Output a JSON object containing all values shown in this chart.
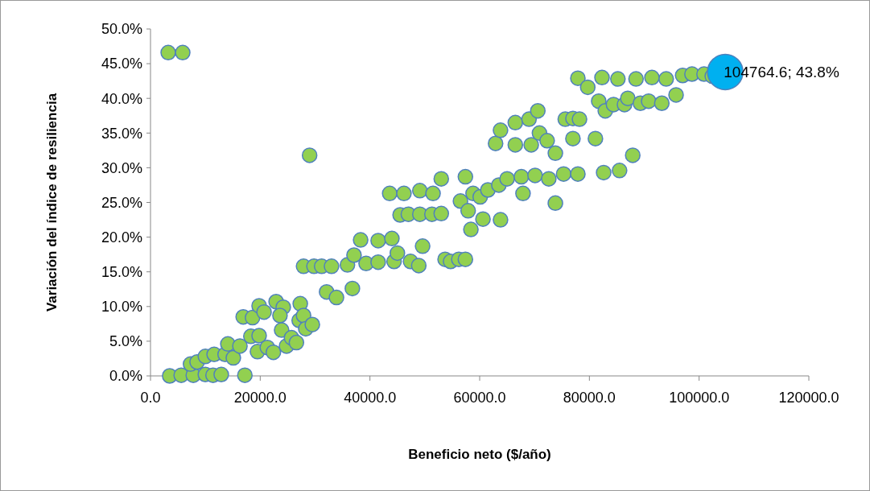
{
  "chart_data": {
    "type": "scatter",
    "xlabel": "Beneficio neto ($/año)",
    "ylabel": "Variación del índice de resiliencia",
    "xlim": [
      0,
      120000
    ],
    "xticks": [
      {
        "value": 0,
        "label": "0.0"
      },
      {
        "value": 20000,
        "label": "20000.0"
      },
      {
        "value": 40000,
        "label": "40000.0"
      },
      {
        "value": 60000,
        "label": "60000.0"
      },
      {
        "value": 80000,
        "label": "80000.0"
      },
      {
        "value": 100000,
        "label": "100000.0"
      },
      {
        "value": 120000,
        "label": "120000.0"
      }
    ],
    "ylim": [
      0,
      50
    ],
    "yticks": [
      {
        "value": 0,
        "label": "0.0%"
      },
      {
        "value": 5,
        "label": "5.0%"
      },
      {
        "value": 10,
        "label": "10.0%"
      },
      {
        "value": 15,
        "label": "15.0%"
      },
      {
        "value": 20,
        "label": "20.0%"
      },
      {
        "value": 25,
        "label": "25.0%"
      },
      {
        "value": 30,
        "label": "30.0%"
      },
      {
        "value": 35,
        "label": "35.0%"
      },
      {
        "value": 40,
        "label": "40.0%"
      },
      {
        "value": 45,
        "label": "45.0%"
      },
      {
        "value": 50,
        "label": "50.0%"
      }
    ],
    "grid": false,
    "marker": "circle",
    "series": [
      {
        "color": "#92d050",
        "x": [
          3230,
          5870,
          3500,
          5600,
          7800,
          10000,
          11400,
          12900,
          7300,
          8500,
          10000,
          11600,
          13600,
          15100,
          14100,
          16300,
          17200,
          16900,
          18600,
          18300,
          19500,
          19800,
          20700,
          19800,
          21300,
          22400,
          22900,
          24200,
          23900,
          23600,
          24800,
          25700,
          26600,
          27300,
          27100,
          27900,
          28300,
          29500,
          27900,
          29800,
          31200,
          29000,
          32100,
          33900,
          33000,
          35900,
          37100,
          38300,
          36800,
          39300,
          41500,
          41500,
          44400,
          44000,
          45000,
          43600,
          46200,
          45500,
          47000,
          47400,
          48900,
          49100,
          49100,
          49600,
          51300,
          51500,
          53000,
          53000,
          53700,
          54700,
          56200,
          57400,
          56500,
          57400,
          57900,
          58400,
          58800,
          60100,
          60600,
          61500,
          62900,
          63500,
          63800,
          63800,
          65000,
          66500,
          66500,
          67600,
          67900,
          69000,
          69400,
          70600,
          70900,
          70100,
          72300,
          72600,
          73800,
          73800,
          75300,
          75600,
          77000,
          77000,
          77900,
          78200,
          77900,
          79700,
          81100,
          81700,
          82300,
          82600,
          82900,
          84400,
          85200,
          85500,
          86400,
          87000,
          87900,
          88500,
          89300,
          90800,
          91400,
          93200,
          94000,
          95800,
          97000,
          98700,
          100900,
          102400
        ],
        "values": [
          46.6,
          46.6,
          0.0,
          0.1,
          0.1,
          0.2,
          0.1,
          0.2,
          1.7,
          2.0,
          2.8,
          3.1,
          3.1,
          2.6,
          4.6,
          4.3,
          0.1,
          8.5,
          8.4,
          5.7,
          3.5,
          10.1,
          9.2,
          5.8,
          4.1,
          3.4,
          10.7,
          9.9,
          6.6,
          8.7,
          4.3,
          5.5,
          4.8,
          10.4,
          8.0,
          8.7,
          6.8,
          7.4,
          15.8,
          15.8,
          15.8,
          31.8,
          12.1,
          11.3,
          15.8,
          16.0,
          17.4,
          19.6,
          12.6,
          16.2,
          16.4,
          19.5,
          16.5,
          19.8,
          17.7,
          26.3,
          26.3,
          23.2,
          23.3,
          16.5,
          15.9,
          23.3,
          26.7,
          18.7,
          23.3,
          26.3,
          28.4,
          23.4,
          16.8,
          16.5,
          16.8,
          16.8,
          25.2,
          28.7,
          23.8,
          21.1,
          26.3,
          25.8,
          22.6,
          26.8,
          33.5,
          27.5,
          22.5,
          35.4,
          28.4,
          36.5,
          33.3,
          28.7,
          26.3,
          37.0,
          33.3,
          38.2,
          35.0,
          28.9,
          33.9,
          28.4,
          32.1,
          24.9,
          29.1,
          37.0,
          37.1,
          34.2,
          29.1,
          37.0,
          42.9,
          41.6,
          34.2,
          39.6,
          43.0,
          29.3,
          38.2,
          39.1,
          42.8,
          29.6,
          39.1,
          40.0,
          31.8,
          42.8,
          39.3,
          39.6,
          43.0,
          39.3,
          42.8,
          40.5,
          43.3,
          43.5,
          43.5,
          43.2
        ]
      },
      {
        "color": "#00b0f0",
        "x": [
          104764.6
        ],
        "values": [
          43.8
        ],
        "value_labels": [
          "104764.6; 43.8%"
        ]
      }
    ]
  }
}
